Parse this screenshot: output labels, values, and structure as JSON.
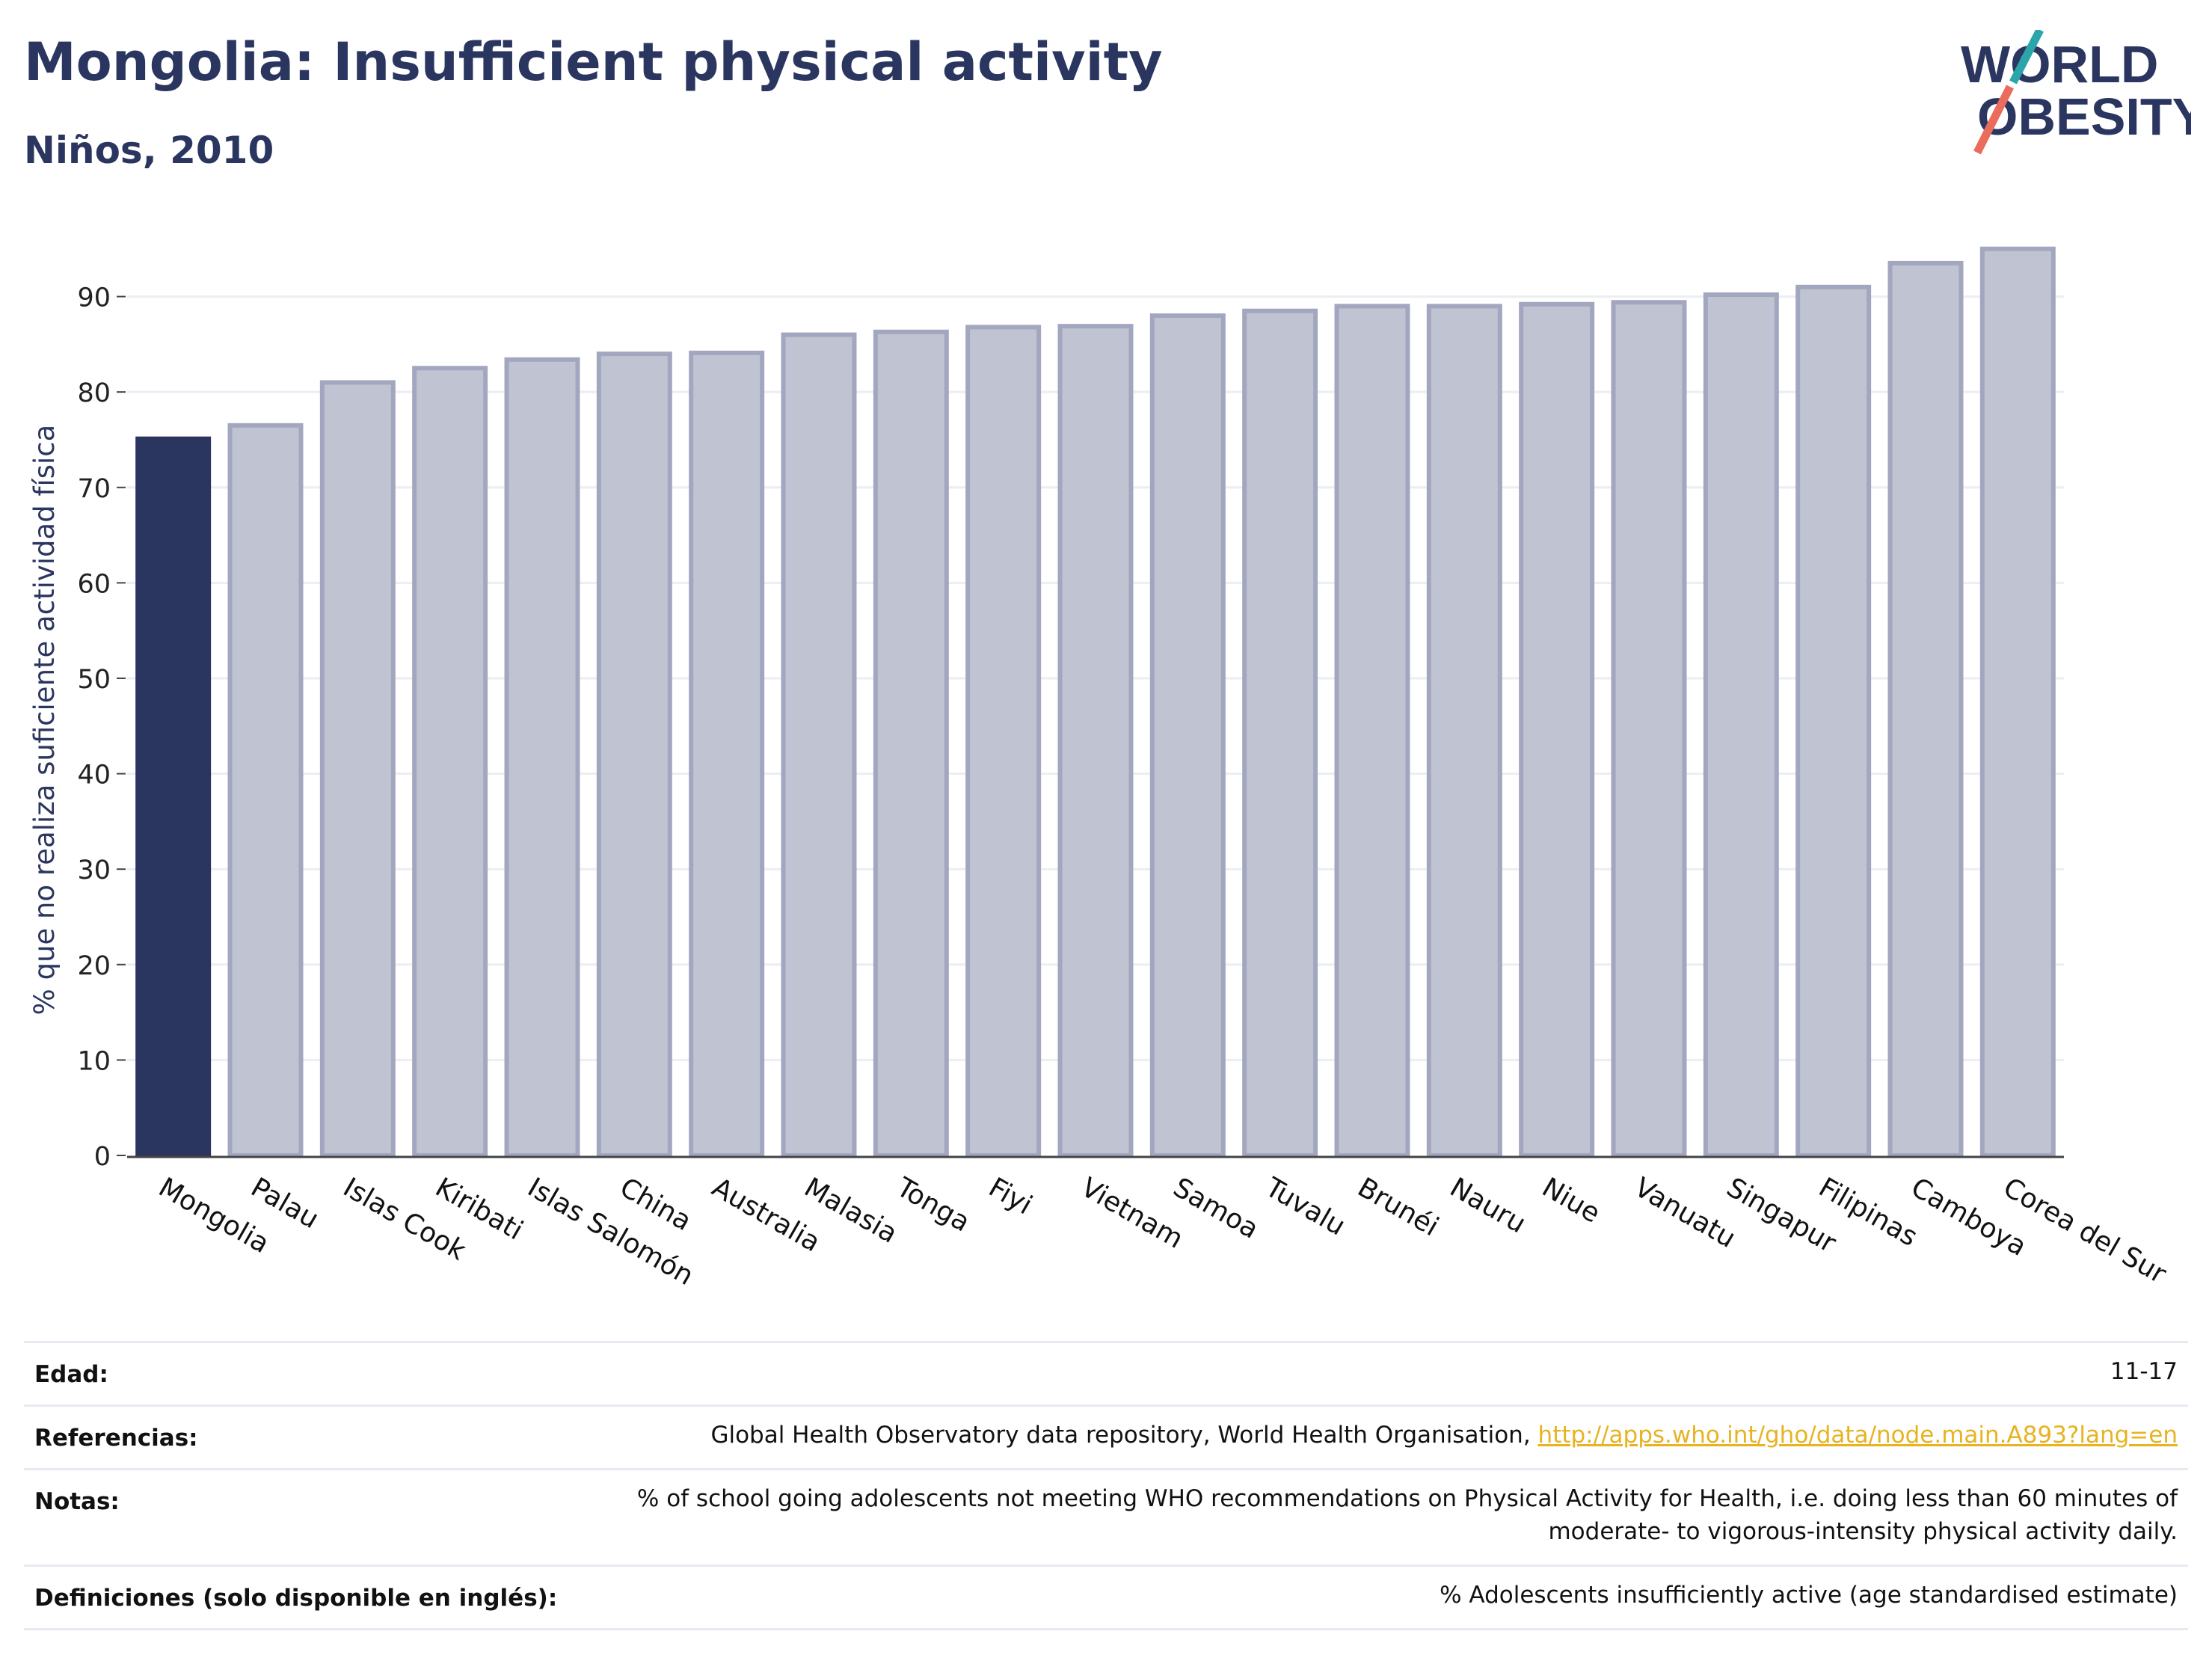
{
  "title": "Mongolia: Insufficient physical activity",
  "subtitle": "Niños, 2010",
  "logo": {
    "line1": "WORLD",
    "line2": "OBESITY"
  },
  "colors": {
    "highlight": "#2b3660",
    "bar": "#c0c3d1",
    "bar_edge": "#a2a7bf",
    "grid": "#eceef3",
    "text": "#2b3660"
  },
  "chart_data": {
    "type": "bar",
    "categories": [
      "Mongolia",
      "Palau",
      "Islas Cook",
      "Kiribati",
      "Islas Salomón",
      "China",
      "Australia",
      "Malasia",
      "Tonga",
      "Fiyi",
      "Vietnam",
      "Samoa",
      "Tuvalu",
      "Brunéi",
      "Nauru",
      "Niue",
      "Vanuatu",
      "Singapur",
      "Filipinas",
      "Camboya",
      "Corea del Sur"
    ],
    "values": [
      75.1,
      76.5,
      81.0,
      82.5,
      83.4,
      84.0,
      84.1,
      86.0,
      86.3,
      86.8,
      86.9,
      88.0,
      88.5,
      89.0,
      89.0,
      89.2,
      89.4,
      90.2,
      91.0,
      93.5,
      95.0
    ],
    "highlight_index": 0,
    "ylabel": "% que no realiza suficiente actividad física",
    "xlabel": "",
    "ylim": [
      0,
      96
    ],
    "yticks": [
      0,
      10,
      20,
      30,
      40,
      50,
      60,
      70,
      80,
      90
    ],
    "grid": true
  },
  "meta": [
    {
      "label": "Edad:",
      "value": "11-17"
    },
    {
      "label": "Referencias:",
      "value": "Global Health Observatory data repository, World Health Organisation, ",
      "link": "http://apps.who.int/gho/data/node.main.A893?lang=en"
    },
    {
      "label": "Notas:",
      "value": "% of school going adolescents not meeting WHO recommendations on Physical Activity for Health, i.e. doing less than 60 minutes of moderate- to vigorous-intensity physical activity daily."
    },
    {
      "label": "Definiciones (solo disponible en inglés):",
      "value": "% Adolescents insufficiently active (age standardised estimate)"
    }
  ]
}
